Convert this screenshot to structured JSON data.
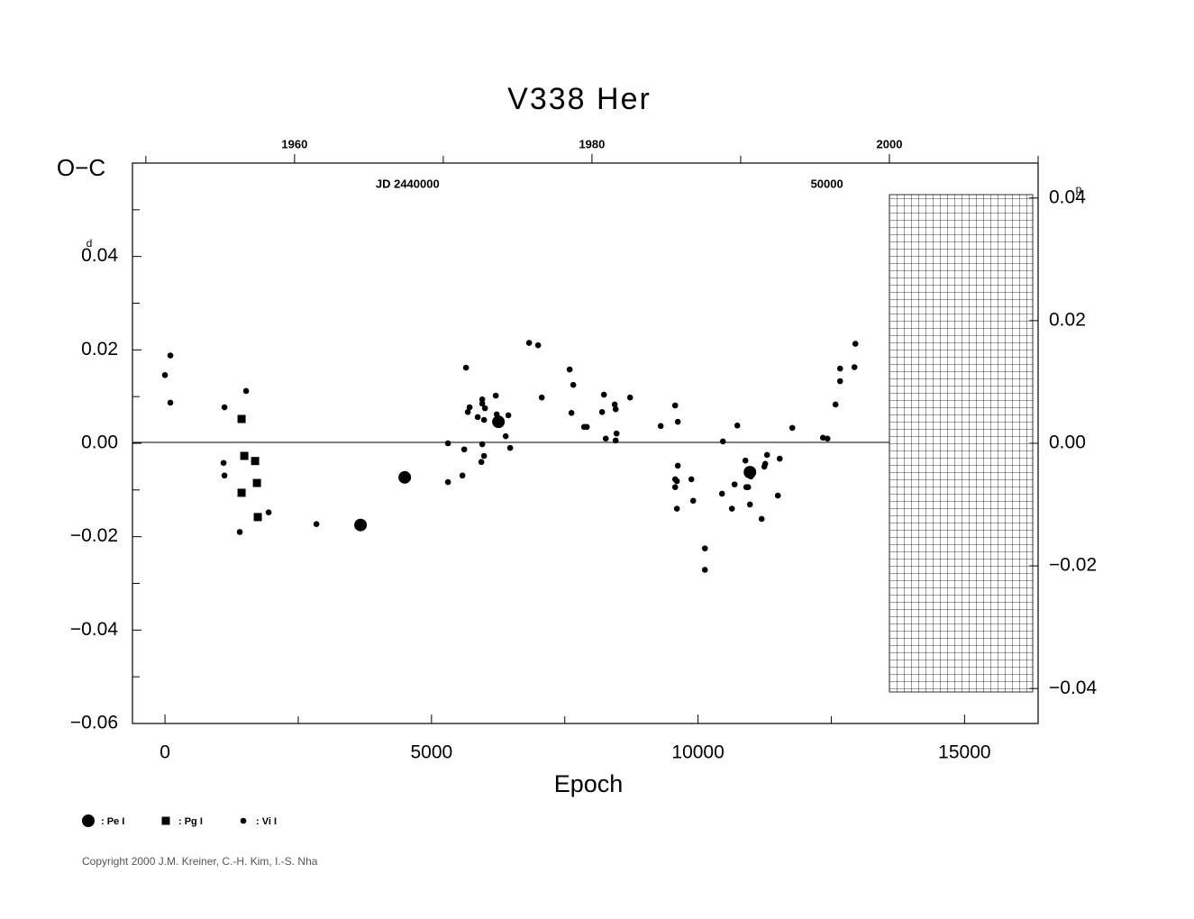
{
  "chart_data": {
    "type": "scatter",
    "title": "V338 Her",
    "xlabel": "Epoch",
    "ylabel": "O−C",
    "y_unit": "d",
    "y2_unit": "p",
    "xlim": [
      -610,
      16380
    ],
    "xticks": [
      0,
      5000,
      10000,
      15000
    ],
    "xminorticks": [
      2500,
      7500,
      12500
    ],
    "ylim": [
      -0.06,
      0.06
    ],
    "yticks": [
      {
        "value": -0.06,
        "label": "−0.06"
      },
      {
        "value": -0.04,
        "label": "−0.04"
      },
      {
        "value": -0.02,
        "label": "−0.02"
      },
      {
        "value": 0,
        "label": "0.00"
      },
      0.02,
      0.04
    ],
    "yminorticks": [
      -0.05,
      -0.03,
      -0.01,
      0.01,
      0.03,
      0.05
    ],
    "y2lim": [
      -0.0457,
      0.0457
    ],
    "y2ticks": [
      {
        "value": -0.04,
        "label": "−0.04"
      },
      {
        "value": -0.02,
        "label": "−0.02"
      },
      {
        "value": 0,
        "label": "0.00"
      },
      0.02,
      0.04
    ],
    "top_axis": {
      "xlim": [
        1949.1,
        2010
      ],
      "ticks": [
        1960,
        1980,
        2000
      ],
      "minor_ticks": [
        1950,
        1970,
        1990,
        2010
      ],
      "jd_labels": [
        {
          "value": 1967.6,
          "label": "JD 2440000"
        },
        {
          "value": 1995.8,
          "label": "50000"
        }
      ]
    },
    "series": [
      {
        "name": ": Pe I",
        "marker": "large-circle",
        "color": "#000000",
        "x": [
          3669,
          4498,
          6256,
          10974
        ],
        "values": [
          -0.0175,
          -0.0073,
          0.0046,
          -0.0062
        ]
      },
      {
        "name": ": Pg I",
        "marker": "square",
        "color": "#000000",
        "x": [
          1437,
          1488,
          1691,
          1437,
          1725,
          1741
        ],
        "values": [
          0.0052,
          -0.0027,
          -0.0038,
          -0.0106,
          -0.0085,
          -0.0158
        ]
      },
      {
        "name": ": Vi I",
        "marker": "dot",
        "color": "#000000",
        "x": [
          0,
          101,
          101,
          1116,
          1099,
          1116,
          1522,
          1403,
          1945,
          2841,
          5309,
          5309,
          5580,
          5614,
          5648,
          5681,
          5715,
          5867,
          5935,
          5952,
          5952,
          5952,
          5986,
          6003,
          5986,
          6206,
          6223,
          6392,
          6442,
          6476,
          6831,
          7000,
          7068,
          7592,
          7660,
          7626,
          7863,
          7914,
          8235,
          8201,
          8269,
          8438,
          8455,
          8472,
          8455,
          8725,
          9300,
          9571,
          9621,
          9571,
          9604,
          9621,
          9571,
          9604,
          9875,
          9909,
          10129,
          10129,
          10467,
          10450,
          10636,
          10686,
          10737,
          10889,
          10906,
          10940,
          10991,
          10974,
          11194,
          11244,
          11261,
          11295,
          11532,
          11498,
          11769,
          12344,
          12428,
          12580,
          12665,
          12665,
          12935,
          12952
        ],
        "values": [
          0.0146,
          0.0188,
          0.0087,
          0.0077,
          -0.0042,
          -0.0069,
          0.0112,
          -0.019,
          -0.0148,
          -0.0173,
          0.0,
          -0.0083,
          -0.0069,
          -0.0013,
          0.0162,
          0.0067,
          0.0077,
          0.0056,
          -0.004,
          0.0094,
          0.0085,
          -0.0002,
          -0.0027,
          0.0075,
          0.005,
          0.0102,
          0.0062,
          0.0015,
          0.006,
          -0.001,
          0.0215,
          0.021,
          0.0098,
          0.0158,
          0.0125,
          0.0065,
          0.0035,
          0.0035,
          0.0104,
          0.0067,
          0.001,
          0.0083,
          0.0073,
          0.0021,
          0.0006,
          0.0098,
          0.0037,
          0.0081,
          0.0046,
          -0.0077,
          -0.0081,
          -0.0048,
          -0.0094,
          -0.014,
          -0.0077,
          -0.0123,
          -0.0225,
          -0.0271,
          0.0004,
          -0.0108,
          -0.014,
          -0.0088,
          0.0038,
          -0.0037,
          -0.0094,
          -0.0094,
          -0.0071,
          -0.0131,
          -0.0162,
          -0.005,
          -0.0044,
          -0.0025,
          -0.0033,
          -0.0112,
          0.0033,
          0.0012,
          0.001,
          0.0083,
          0.0133,
          0.016,
          0.0163,
          0.0213
        ]
      }
    ],
    "copyright": "Copyright 2000 J.M. Kreiner, C.-H. Kim, I.-S. Nha"
  }
}
